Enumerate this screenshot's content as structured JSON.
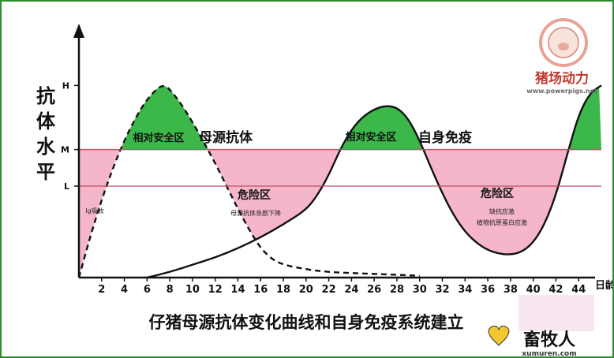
{
  "chart_data": {
    "type": "line",
    "title": "仔猪母源抗体变化曲线和自身免疫系统建立",
    "ylabel": "抗体水平",
    "xlabel": "日龄",
    "x_ticks": [
      2,
      4,
      6,
      8,
      10,
      12,
      14,
      16,
      18,
      20,
      22,
      24,
      26,
      28,
      30,
      32,
      34,
      36,
      38,
      40,
      42,
      44
    ],
    "y_levels": [
      "H",
      "M",
      "L"
    ],
    "xlim": [
      0,
      46
    ],
    "levels": {
      "L": 1.0,
      "M": 1.4,
      "H": 2.1
    },
    "ylim": [
      0,
      2.5
    ],
    "series": [
      {
        "name": "母源抗体",
        "style": "dashed",
        "x": [
          0,
          1,
          2,
          3,
          4,
          5,
          6,
          7,
          7.5,
          8,
          9,
          10,
          11,
          12,
          13,
          14,
          15,
          16,
          17,
          18,
          20,
          22,
          24,
          26,
          28,
          30
        ],
        "y": [
          0,
          0.45,
          0.85,
          1.2,
          1.5,
          1.75,
          1.95,
          2.08,
          2.1,
          2.06,
          1.9,
          1.7,
          1.48,
          1.25,
          1.0,
          0.75,
          0.52,
          0.32,
          0.2,
          0.14,
          0.09,
          0.06,
          0.05,
          0.04,
          0.03,
          0.02
        ]
      },
      {
        "name": "自身免疫",
        "style": "solid",
        "x": [
          6,
          8,
          10,
          12,
          14,
          16,
          18,
          20,
          21,
          22,
          23,
          24,
          25,
          26,
          27,
          28,
          29,
          30,
          31,
          32,
          33,
          34,
          35,
          36,
          37,
          38,
          39,
          40,
          41,
          42,
          43,
          44,
          45,
          46
        ],
        "y": [
          0,
          0.06,
          0.14,
          0.22,
          0.32,
          0.44,
          0.58,
          0.74,
          0.9,
          1.12,
          1.4,
          1.62,
          1.76,
          1.84,
          1.88,
          1.86,
          1.74,
          1.5,
          1.2,
          0.92,
          0.68,
          0.5,
          0.38,
          0.3,
          0.26,
          0.25,
          0.28,
          0.38,
          0.58,
          0.9,
          1.35,
          1.78,
          2.02,
          2.1
        ]
      }
    ],
    "zones": [
      {
        "label": "相对安全区",
        "color": "#3cb84a"
      },
      {
        "label": "危险区",
        "color": "#f4b6c8"
      }
    ],
    "annotations": [
      {
        "text": "相对安全区"
      },
      {
        "text": "母源抗体"
      },
      {
        "text": "相对安全区"
      },
      {
        "text": "自身免疫"
      },
      {
        "text": "危险区"
      },
      {
        "text": "母源抗体急剧下降"
      },
      {
        "text": "危险区"
      },
      {
        "text": "缺抗应激"
      },
      {
        "text": "植物抗原蛋白应激"
      },
      {
        "text": "Ig吸收"
      }
    ],
    "colors": {
      "safe": "#3cb84a",
      "danger": "#f4b6c8",
      "threshold_line": "#c0506a",
      "frame": "#2e8b2e"
    }
  },
  "logo": {
    "brand": "猪场动力",
    "site": "www.powerpigs.net"
  },
  "watermark": {
    "text": "畜牧人",
    "site": "xumuren.com"
  }
}
